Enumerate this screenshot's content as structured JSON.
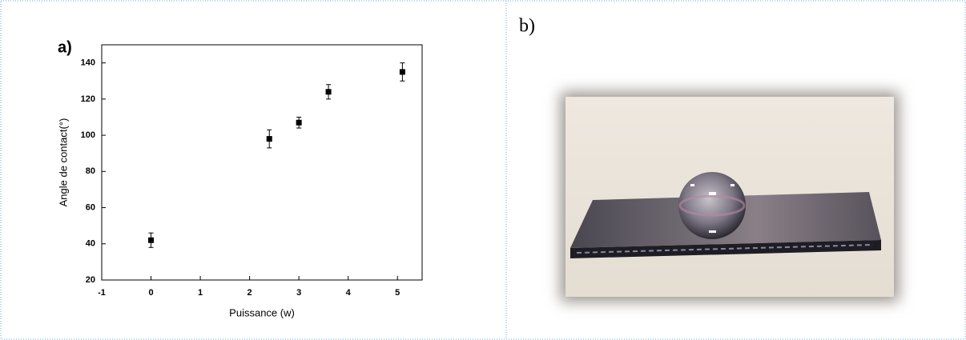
{
  "chart_data": {
    "type": "scatter",
    "title": "a)",
    "x_label": "Puissance (w)",
    "y_label": "Angle de contact(°)",
    "x": [
      0,
      2.4,
      3,
      3.6,
      5.1
    ],
    "values": [
      42,
      98,
      107,
      124,
      135
    ],
    "errors": [
      4,
      5,
      3,
      4,
      5
    ],
    "color": "#000000",
    "xlim": [
      -1,
      5.5
    ],
    "xticks": [
      -1,
      0,
      1,
      2,
      3,
      4,
      5
    ],
    "ylim": [
      20,
      150
    ],
    "yticks": [
      20,
      40,
      60,
      80,
      100,
      120,
      140
    ]
  },
  "panel_b_label": "b)"
}
